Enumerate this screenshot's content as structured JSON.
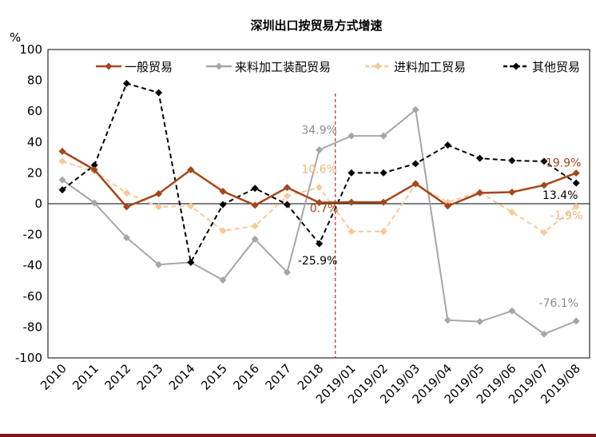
{
  "chart_data": {
    "type": "line",
    "title": "深圳出口按贸易方式增速",
    "ylabel": "%",
    "ylim": [
      -100,
      100
    ],
    "yticks": [
      -100,
      -80,
      -60,
      -40,
      -20,
      0,
      20,
      40,
      60,
      80,
      100
    ],
    "categories": [
      "2010",
      "2011",
      "2012",
      "2013",
      "2014",
      "2015",
      "2016",
      "2017",
      "2018",
      "2019/01",
      "2019/02",
      "2019/03",
      "2019/04",
      "2019/05",
      "2019/06",
      "2019/07",
      "2019/08"
    ],
    "divider_after": "2018",
    "legend_position": "top",
    "series": [
      {
        "name": "一般贸易",
        "color": "#a6461a",
        "style": "solid",
        "values": [
          34,
          22,
          -2,
          6.5,
          22,
          8,
          -1,
          10.5,
          0.7,
          1,
          1,
          13,
          -1.5,
          7,
          7.5,
          12,
          19.9
        ]
      },
      {
        "name": "来料加工装配贸易",
        "color": "#a6a6a6",
        "style": "solid",
        "values": [
          15.5,
          0.5,
          -22,
          -39.5,
          -38,
          -49.5,
          -23,
          -44.5,
          34.9,
          44,
          44,
          61,
          -75.5,
          -76.5,
          -69.5,
          -84.5,
          -76.1
        ]
      },
      {
        "name": "进料加工贸易",
        "color": "#f9c898",
        "style": "dashed",
        "values": [
          27.5,
          21,
          7,
          -2,
          -1.5,
          -17.5,
          -14.5,
          5,
          10.6,
          -18,
          -18,
          12.5,
          1,
          7.5,
          -5.5,
          -18.5,
          -1.9
        ]
      },
      {
        "name": "其他贸易",
        "color": "#000000",
        "style": "dashed",
        "values": [
          9,
          25,
          78,
          72,
          -38,
          -0.5,
          10,
          -0.5,
          -25.9,
          20,
          20,
          26,
          38,
          29.5,
          28,
          27.5,
          13.4
        ]
      }
    ],
    "annotations": [
      {
        "text": "34.9%",
        "series": 1,
        "index": 8,
        "color": "#8c8c8c"
      },
      {
        "text": "10.6%",
        "series": 2,
        "index": 8,
        "color": "#f2b27a"
      },
      {
        "text": "0.7%",
        "series": 0,
        "index": 8,
        "color": "#a6461a"
      },
      {
        "text": "-25.9%",
        "series": 3,
        "index": 8,
        "color": "#000000"
      },
      {
        "text": "19.9%",
        "series": 0,
        "index": 16,
        "color": "#a6461a"
      },
      {
        "text": "13.4%",
        "series": 3,
        "index": 16,
        "color": "#000000"
      },
      {
        "text": "-1.9%",
        "series": 2,
        "index": 16,
        "color": "#f2b27a"
      },
      {
        "text": "-76.1%",
        "series": 1,
        "index": 16,
        "color": "#8c8c8c"
      }
    ],
    "colors": {
      "divider": "#cc2222",
      "bottom_rule": "#7a1a1a"
    }
  }
}
